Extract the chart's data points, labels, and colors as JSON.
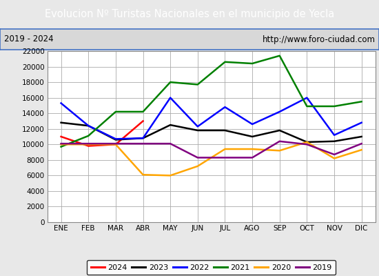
{
  "title": "Evolucion Nº Turistas Nacionales en el municipio de Yecla",
  "subtitle_left": "2019 - 2024",
  "subtitle_right": "http://www.foro-ciudad.com",
  "title_bg_color": "#4472c4",
  "title_text_color": "white",
  "months": [
    "ENE",
    "FEB",
    "MAR",
    "ABR",
    "MAY",
    "JUN",
    "JUL",
    "AGO",
    "SEP",
    "OCT",
    "NOV",
    "DIC"
  ],
  "ylim": [
    0,
    22000
  ],
  "yticks": [
    0,
    2000,
    4000,
    6000,
    8000,
    10000,
    12000,
    14000,
    16000,
    18000,
    20000,
    22000
  ],
  "series": {
    "2024": {
      "color": "red",
      "data": [
        11000,
        9800,
        10000,
        13000,
        null,
        null,
        null,
        null,
        null,
        null,
        null,
        null
      ]
    },
    "2023": {
      "color": "black",
      "data": [
        12800,
        12400,
        10600,
        10800,
        12500,
        11800,
        11800,
        11000,
        11800,
        10300,
        10400,
        11000
      ]
    },
    "2022": {
      "color": "blue",
      "data": [
        15300,
        12400,
        10700,
        10800,
        16000,
        12300,
        14800,
        12600,
        14200,
        16000,
        11200,
        12800
      ]
    },
    "2021": {
      "color": "green",
      "data": [
        9700,
        11100,
        14200,
        14200,
        18000,
        17700,
        20600,
        20400,
        21400,
        14900,
        14900,
        15500
      ]
    },
    "2020": {
      "color": "orange",
      "data": [
        10000,
        10000,
        10000,
        6100,
        6000,
        7200,
        9400,
        9400,
        9200,
        10300,
        8200,
        9300
      ]
    },
    "2019": {
      "color": "purple",
      "data": [
        10100,
        10100,
        10100,
        10100,
        10100,
        8300,
        8300,
        8300,
        10400,
        10000,
        8700,
        10100
      ]
    }
  },
  "legend_order": [
    "2024",
    "2023",
    "2022",
    "2021",
    "2020",
    "2019"
  ],
  "fig_bg_color": "#e8e8e8",
  "plot_bg_color": "#e8e8e8",
  "inner_plot_bg": "white",
  "grid_color": "#aaaaaa",
  "subtitle_bg": "#d8d8d8",
  "subtitle_border": "#4472c4"
}
